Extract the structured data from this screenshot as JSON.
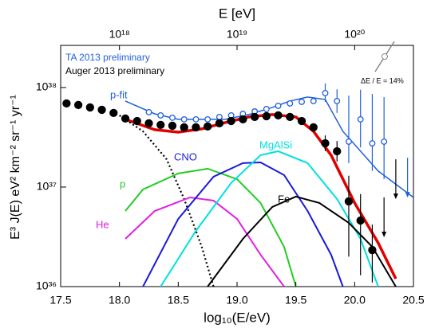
{
  "chart_data": {
    "type": "line",
    "x_label": "log₁₀(E/eV)",
    "x2_label": "E  [eV]",
    "y_label": "E³ J(E)   eV² km⁻² sr⁻¹ yr⁻¹",
    "annotation": "ΔE / E = 14%",
    "xlim": [
      17.5,
      20.5
    ],
    "xticks": [
      17.5,
      {
        "value": 18,
        "label": "18.0"
      },
      18.5,
      {
        "value": 19,
        "label": "19.0"
      },
      19.5,
      {
        "value": 20,
        "label": "20.0"
      },
      20.5
    ],
    "x2lim": [
      17.5,
      20.5
    ],
    "x2ticks": [
      {
        "value": 18,
        "label": "10¹⁸"
      },
      {
        "value": 19,
        "label": "10¹⁹"
      },
      {
        "value": 20,
        "label": "10²⁰"
      }
    ],
    "yscale": "log",
    "ylim": [
      1e+36,
      2.65e+38
    ],
    "yticks": [
      {
        "value": 1e+36,
        "label": "10³⁶"
      },
      {
        "value": 1e+37,
        "label": "10³⁷"
      },
      {
        "value": 1e+38,
        "label": "10³⁸"
      }
    ],
    "points": [
      {
        "name": "TA 2013 preliminary",
        "color": "#1f5fe0",
        "filled": false,
        "x": [
          18.25,
          18.35,
          18.45,
          18.55,
          18.65,
          18.75,
          18.85,
          18.95,
          19.05,
          19.15,
          19.25,
          19.35,
          19.45,
          19.55,
          19.65,
          19.75,
          19.85,
          19.95,
          20.05,
          20.15,
          20.25
        ],
        "values": [
          5.65e+37,
          5.25e+37,
          4.97e+37,
          4.79e+37,
          4.79e+37,
          4.79e+37,
          5.06e+37,
          5.25e+37,
          5.44e+37,
          5.75e+37,
          6.08e+37,
          6.55e+37,
          6.92e+37,
          7.18e+37,
          7.31e+37,
          8.79e+37,
          7.31e+37,
          2.86e+37,
          4.79e+37,
          2.75e+37,
          2.86e+37
        ],
        "err_low": [
          null,
          null,
          null,
          null,
          null,
          null,
          null,
          null,
          null,
          null,
          null,
          null,
          null,
          null,
          null,
          7.18e+37,
          5.55e+37,
          1.74e+37,
          2.5e+37,
          1.45e+37,
          1.2e+37
        ],
        "err_high": [
          null,
          null,
          null,
          null,
          null,
          null,
          null,
          null,
          null,
          null,
          null,
          null,
          null,
          null,
          null,
          1.1e+38,
          9.6e+37,
          8.3e+37,
          9.5e+37,
          8.6e+37,
          8e+37
        ]
      },
      {
        "name": "Auger 2013 preliminary",
        "color": "#000000",
        "filled": true,
        "x": [
          17.55,
          17.65,
          17.75,
          17.85,
          17.95,
          18.05,
          18.15,
          18.25,
          18.35,
          18.45,
          18.55,
          18.65,
          18.75,
          18.85,
          18.95,
          19.05,
          19.15,
          19.25,
          19.35,
          19.45,
          19.55,
          19.65,
          19.75,
          19.85,
          19.95,
          20.05,
          20.15
        ],
        "values": [
          6.92e+37,
          6.67e+37,
          6.31e+37,
          5.97e+37,
          5.55e+37,
          4.88e+37,
          4.61e+37,
          4.37e+37,
          4.21e+37,
          4.13e+37,
          3.98e+37,
          3.98e+37,
          4.06e+37,
          4.37e+37,
          4.61e+37,
          4.79e+37,
          5.06e+37,
          5.15e+37,
          5.25e+37,
          5.06e+37,
          4.61e+37,
          3.98e+37,
          2.75e+37,
          2.29e+37,
          7.18e+36,
          4.61e+36,
          2.33e+36
        ],
        "err_low": [
          null,
          null,
          null,
          null,
          null,
          null,
          null,
          null,
          null,
          null,
          null,
          null,
          null,
          null,
          null,
          null,
          null,
          null,
          null,
          null,
          null,
          null,
          2.3e+37,
          1.8e+37,
          2e+36,
          1.3e+36,
          1.1e+36
        ],
        "err_high": [
          null,
          null,
          null,
          null,
          null,
          null,
          null,
          null,
          null,
          null,
          null,
          null,
          null,
          null,
          null,
          null,
          null,
          null,
          null,
          null,
          null,
          null,
          3.3e+37,
          2.9e+37,
          1.3e+37,
          8.5e+36,
          4.2e+36
        ]
      }
    ],
    "upper_limits": [
      {
        "color": "#1f5fe0",
        "x": 20.45,
        "value": 1.97e+37
      },
      {
        "color": "#000000",
        "x": 20.25,
        "value": 7.87e+36
      },
      {
        "color": "#000000",
        "x": 20.35,
        "value": 1.9e+37
      }
    ],
    "curves": [
      {
        "name": "p-fit",
        "color": "#1f5fe0",
        "width": 1.5,
        "x": [
          18.05,
          18.3,
          18.5,
          18.9,
          19.1,
          19.3,
          19.45,
          19.6,
          19.75,
          19.9,
          20.2,
          20.5
        ],
        "values": [
          7.31e+37,
          5.44e+37,
          4.79e+37,
          4.79e+37,
          5.35e+37,
          6.31e+37,
          7.31e+37,
          8.02e+37,
          7.59e+37,
          3.63e+37,
          1.45e+37,
          7.87e+36
        ]
      },
      {
        "color": "#e00000",
        "width": 3.5,
        "x": [
          18.05,
          18.3,
          18.5,
          18.7,
          18.9,
          19.1,
          19.3,
          19.5,
          19.65,
          19.8,
          20.0,
          20.2,
          20.35
        ],
        "values": [
          4.79e+37,
          3.77e+37,
          3.56e+37,
          3.84e+37,
          4.45e+37,
          5.06e+37,
          5.35e+37,
          5.06e+37,
          3.63e+37,
          2.09e+37,
          6.92e+36,
          2.75e+36,
          1.2e+36
        ]
      },
      {
        "color": "#000000",
        "width": 2.2,
        "dash": true,
        "x": [
          18.0,
          18.2,
          18.4,
          18.55,
          18.7,
          18.8
        ],
        "values": [
          5.25e+37,
          3.63e+37,
          1.91e+37,
          7.59e+36,
          2.51e+36,
          1e+36
        ]
      },
      {
        "name": "p",
        "color": "#22cc22",
        "width": 2,
        "x": [
          18.05,
          18.2,
          18.5,
          18.75,
          19.0,
          19.2,
          19.4,
          19.5
        ],
        "values": [
          5.75e+36,
          9.46e+36,
          1.37e+37,
          1.53e+37,
          1.2e+37,
          6.92e+36,
          2.51e+36,
          1e+36
        ]
      },
      {
        "name": "He",
        "color": "#e020e0",
        "width": 2,
        "x": [
          18.05,
          18.3,
          18.6,
          18.8,
          19.0,
          19.2,
          19.4
        ],
        "values": [
          3.02e+36,
          5.75e+36,
          7.87e+36,
          7.31e+36,
          4.79e+36,
          2.09e+36,
          1e+36
        ]
      },
      {
        "name": "CNO",
        "color": "#1a1adb",
        "width": 2,
        "x": [
          18.2,
          18.5,
          18.8,
          19.05,
          19.2,
          19.4,
          19.6,
          19.8,
          19.9
        ],
        "values": [
          1e+36,
          4.79e+36,
          1.27e+37,
          1.74e+37,
          1.77e+37,
          1.32e+37,
          5.75e+36,
          2.09e+36,
          1e+36
        ]
      },
      {
        "name": "MgAlSi",
        "color": "#00e0e0",
        "width": 2,
        "x": [
          18.35,
          18.65,
          18.95,
          19.2,
          19.35,
          19.6,
          19.85,
          20.05,
          20.2
        ],
        "values": [
          1e+36,
          3.63e+36,
          1.1e+37,
          2.09e+37,
          2.29e+37,
          1.74e+37,
          7.59e+36,
          3.02e+36,
          1e+36
        ]
      },
      {
        "name": "Fe",
        "color": "#000000",
        "width": 2,
        "x": [
          18.75,
          19.05,
          19.3,
          19.5,
          19.7,
          19.95,
          20.15,
          20.35
        ],
        "values": [
          1e+36,
          3.02e+36,
          6.31e+36,
          8.02e+36,
          6.92e+36,
          4.37e+36,
          2.51e+36,
          1e+36
        ]
      }
    ]
  }
}
